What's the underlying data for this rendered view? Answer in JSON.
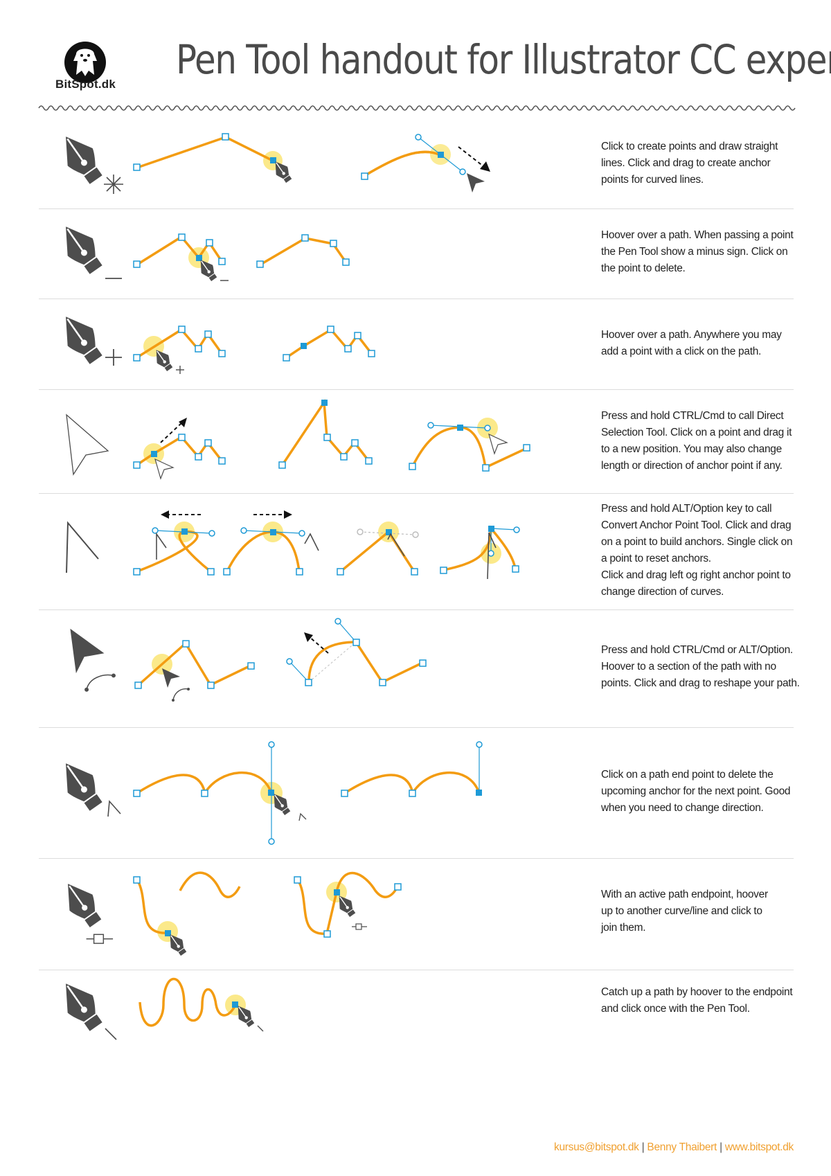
{
  "brand": {
    "logo_text": "BitSpot.dk"
  },
  "header": {
    "title": "Pen Tool handout for Illustrator CC experts"
  },
  "colors": {
    "path": "#f39c12",
    "anchor": "#1e9ad6",
    "highlight": "#fbe98a",
    "icon": "#4d4d4d"
  },
  "rows": [
    {
      "tool_icon": "pen-tool-new-path-icon",
      "description": [
        "Click to create points and draw straight",
        "lines. Click and drag to create anchor",
        "points for curved lines."
      ]
    },
    {
      "tool_icon": "pen-tool-delete-anchor-icon",
      "description": [
        "Hoover over a path. When passing a point",
        "the Pen Tool show a minus sign. Click on",
        "the point to delete."
      ]
    },
    {
      "tool_icon": "pen-tool-add-anchor-icon",
      "description": [
        "Hoover over a path. Anywhere you may",
        "add a point with a click on the path."
      ]
    },
    {
      "tool_icon": "direct-selection-tool-icon",
      "description": [
        "Press and hold CTRL/Cmd to call Direct",
        "Selection Tool. Click on a point and drag it",
        "to a new position. You may also change",
        "length or direction of anchor point if any."
      ]
    },
    {
      "tool_icon": "convert-anchor-point-tool-icon",
      "description": [
        "Press and hold ALT/Option key to call",
        "Convert Anchor Point Tool. Click and drag",
        "on a point to build anchors. Single click on",
        "a point to reset anchors.",
        "Click and drag left og right anchor point to",
        "change direction of curves."
      ]
    },
    {
      "tool_icon": "reshape-path-cursor-icon",
      "description": [
        "Press and hold CTRL/Cmd or ALT/Option.",
        "Hoover to a section of the path with no",
        "points.  Click and drag to reshape your path."
      ]
    },
    {
      "tool_icon": "pen-tool-convert-endpoint-icon",
      "description": [
        "Click on a path end point to delete the",
        "upcoming anchor for the next point. Good",
        "when you need to change direction."
      ]
    },
    {
      "tool_icon": "pen-tool-join-path-icon",
      "description": [
        "With an active path endpoint, hoover",
        "up to another curve/line and click to",
        "join them."
      ]
    },
    {
      "tool_icon": "pen-tool-continue-path-icon",
      "description": [
        "Catch up a path by hoover to the endpoint",
        "and click once with the Pen Tool."
      ]
    }
  ],
  "footer": {
    "email": "kursus@bitspot.dk",
    "author": "Benny Thaibert",
    "website": "www.bitspot.dk",
    "separator": "|"
  }
}
